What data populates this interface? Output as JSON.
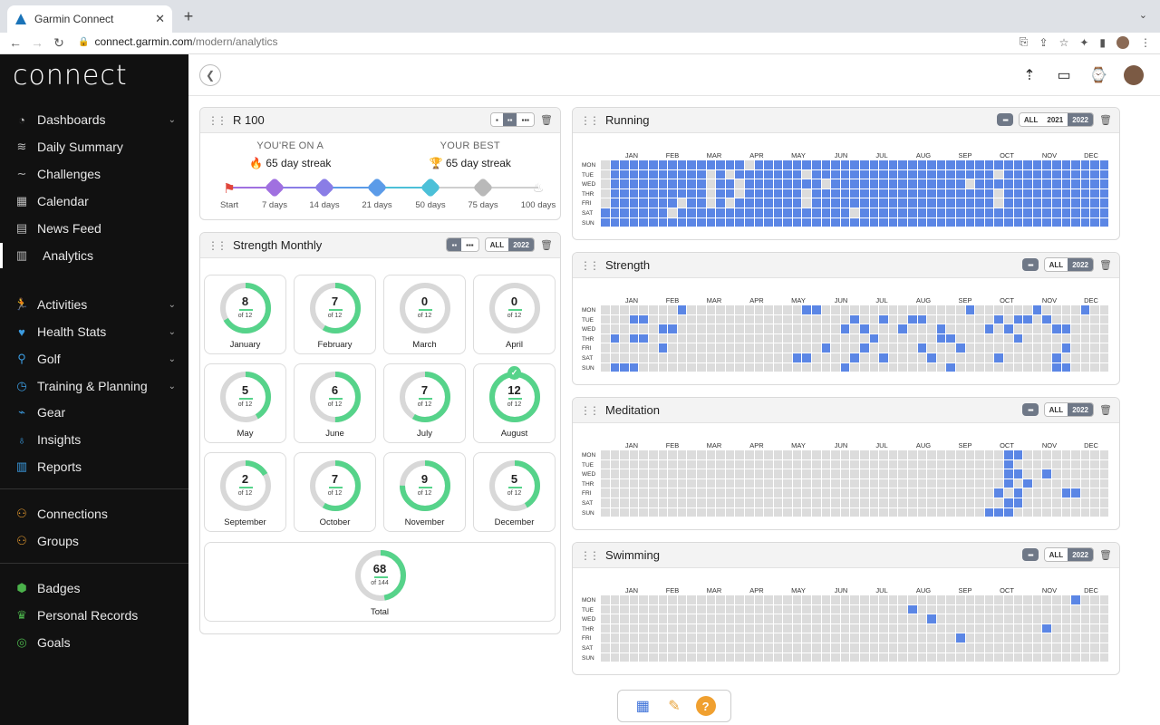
{
  "browser": {
    "tab_title": "Garmin Connect",
    "url_host": "connect.garmin.com",
    "url_path": "/modern/analytics"
  },
  "sidebar": {
    "logo": "connect",
    "items": [
      {
        "label": "Dashboards",
        "icon": "gauge-icon",
        "chevron": true
      },
      {
        "label": "Daily Summary",
        "icon": "layers-icon",
        "chevron": false
      },
      {
        "label": "Challenges",
        "icon": "wave-icon",
        "chevron": false
      },
      {
        "label": "Calendar",
        "icon": "calendar-icon",
        "chevron": false
      },
      {
        "label": "News Feed",
        "icon": "newsfeed-icon",
        "chevron": false
      },
      {
        "label": "Analytics",
        "icon": "bar-chart-icon",
        "chevron": false
      },
      {
        "label": "Activities",
        "icon": "runner-icon",
        "chevron": true
      },
      {
        "label": "Health Stats",
        "icon": "heart-icon",
        "chevron": true
      },
      {
        "label": "Golf",
        "icon": "golfer-icon",
        "chevron": true
      },
      {
        "label": "Training & Planning",
        "icon": "stopwatch-icon",
        "chevron": true
      },
      {
        "label": "Gear",
        "icon": "shoe-icon",
        "chevron": false
      },
      {
        "label": "Insights",
        "icon": "lightbulb-icon",
        "chevron": false
      },
      {
        "label": "Reports",
        "icon": "reports-icon",
        "chevron": false
      },
      {
        "label": "Connections",
        "icon": "people-icon",
        "chevron": false
      },
      {
        "label": "Groups",
        "icon": "group-icon",
        "chevron": false
      },
      {
        "label": "Badges",
        "icon": "badge-icon",
        "chevron": false
      },
      {
        "label": "Personal Records",
        "icon": "trophy-icon",
        "chevron": false
      },
      {
        "label": "Goals",
        "icon": "target-icon",
        "chevron": false
      }
    ]
  },
  "streak": {
    "title": "R 100",
    "current_label": "YOU'RE ON A",
    "current_value": "65 day streak",
    "best_label": "YOUR BEST",
    "best_value": "65 day streak",
    "milestones": [
      {
        "label": "Start",
        "color": "#e0463b",
        "achieved": true
      },
      {
        "label": "7 days",
        "color": "#a070e0",
        "achieved": true
      },
      {
        "label": "14 days",
        "color": "#8a7de6",
        "achieved": true
      },
      {
        "label": "21 days",
        "color": "#5b9be8",
        "achieved": true
      },
      {
        "label": "50 days",
        "color": "#4cc0d8",
        "achieved": true
      },
      {
        "label": "75 days",
        "color": "#b9b9b9",
        "achieved": false
      },
      {
        "label": "100 days",
        "color": "#c9c9c9",
        "achieved": false
      }
    ]
  },
  "strength_monthly": {
    "title": "Strength Monthly",
    "seg_all": "ALL",
    "seg_year": "2022",
    "months": [
      {
        "name": "January",
        "value": 8,
        "of": "of 12"
      },
      {
        "name": "February",
        "value": 7,
        "of": "of 12"
      },
      {
        "name": "March",
        "value": 0,
        "of": "of 12"
      },
      {
        "name": "April",
        "value": 0,
        "of": "of 12"
      },
      {
        "name": "May",
        "value": 5,
        "of": "of 12"
      },
      {
        "name": "June",
        "value": 6,
        "of": "of 12"
      },
      {
        "name": "July",
        "value": 7,
        "of": "of 12"
      },
      {
        "name": "August",
        "value": 12,
        "of": "of 12"
      },
      {
        "name": "September",
        "value": 2,
        "of": "of 12"
      },
      {
        "name": "October",
        "value": 7,
        "of": "of 12"
      },
      {
        "name": "November",
        "value": 9,
        "of": "of 12"
      },
      {
        "name": "December",
        "value": 5,
        "of": "of 12"
      }
    ],
    "total": {
      "name": "Total",
      "value": 68,
      "of": "of 144",
      "max": 144
    }
  },
  "heatmap_common": {
    "months": [
      "JAN",
      "FEB",
      "MAR",
      "APR",
      "MAY",
      "JUN",
      "JUL",
      "AUG",
      "SEP",
      "OCT",
      "NOV",
      "DEC"
    ],
    "days": [
      "MON",
      "TUE",
      "WED",
      "THR",
      "FRI",
      "SAT",
      "SUN"
    ]
  },
  "heatmaps": [
    {
      "key": "running",
      "title": "Running",
      "seg": [
        "ALL",
        "2021",
        "2022"
      ],
      "active_weeks": [
        [
          1,
          2,
          3,
          4,
          5,
          6,
          7,
          8,
          9,
          10,
          11,
          12,
          13,
          14,
          16,
          17,
          18,
          19,
          20,
          21,
          22,
          23,
          24,
          25,
          26,
          27,
          28,
          29,
          30,
          31,
          32,
          33,
          34,
          35,
          36,
          37,
          38,
          39,
          40,
          41,
          42,
          43,
          44,
          45,
          46,
          47,
          48,
          49,
          50,
          51,
          52
        ],
        [
          1,
          2,
          3,
          4,
          5,
          6,
          7,
          8,
          9,
          10,
          12,
          14,
          15,
          16,
          17,
          18,
          19,
          20,
          22,
          23,
          24,
          25,
          26,
          27,
          28,
          29,
          30,
          31,
          32,
          33,
          34,
          35,
          36,
          37,
          38,
          39,
          40,
          42,
          43,
          44,
          45,
          46,
          47,
          48,
          49,
          50,
          51,
          52
        ],
        [
          1,
          2,
          3,
          4,
          5,
          6,
          7,
          8,
          9,
          10,
          12,
          13,
          15,
          16,
          17,
          18,
          19,
          20,
          21,
          22,
          24,
          25,
          26,
          27,
          28,
          29,
          30,
          31,
          32,
          33,
          34,
          35,
          36,
          37,
          39,
          40,
          41,
          42,
          43,
          44,
          45,
          46,
          47,
          48,
          49,
          50,
          51,
          52
        ],
        [
          1,
          2,
          3,
          4,
          5,
          6,
          7,
          8,
          9,
          10,
          12,
          13,
          15,
          16,
          17,
          18,
          19,
          20,
          22,
          23,
          24,
          25,
          26,
          27,
          28,
          29,
          30,
          31,
          32,
          33,
          34,
          35,
          36,
          37,
          38,
          39,
          40,
          42,
          43,
          44,
          45,
          46,
          47,
          48,
          49,
          50,
          51,
          52
        ],
        [
          1,
          2,
          3,
          4,
          5,
          6,
          7,
          9,
          10,
          12,
          14,
          15,
          16,
          17,
          18,
          19,
          20,
          22,
          23,
          24,
          25,
          26,
          27,
          28,
          29,
          30,
          31,
          32,
          33,
          34,
          35,
          36,
          37,
          38,
          39,
          40,
          42,
          43,
          44,
          45,
          46,
          47,
          48,
          49,
          50,
          51,
          52
        ],
        [
          0,
          1,
          2,
          3,
          4,
          5,
          6,
          8,
          9,
          10,
          11,
          12,
          13,
          14,
          15,
          16,
          17,
          18,
          19,
          20,
          21,
          22,
          23,
          24,
          25,
          27,
          28,
          29,
          30,
          31,
          32,
          33,
          34,
          35,
          36,
          37,
          38,
          39,
          40,
          41,
          42,
          43,
          44,
          45,
          46,
          47,
          48,
          49,
          50,
          51,
          52
        ],
        [
          0,
          1,
          2,
          3,
          4,
          5,
          6,
          7,
          8,
          9,
          10,
          11,
          12,
          13,
          14,
          15,
          16,
          17,
          18,
          19,
          20,
          21,
          22,
          23,
          24,
          25,
          26,
          27,
          28,
          29,
          30,
          31,
          32,
          33,
          34,
          35,
          36,
          37,
          38,
          39,
          40,
          41,
          42,
          43,
          44,
          45,
          46,
          47,
          48,
          49,
          50,
          51,
          52
        ]
      ]
    },
    {
      "key": "strength",
      "title": "Strength",
      "seg": [
        "ALL",
        "2022"
      ],
      "active_weeks": [
        [
          8,
          21,
          22,
          38,
          45,
          50
        ],
        [
          3,
          4,
          26,
          29,
          32,
          33,
          41,
          43,
          44,
          46
        ],
        [
          6,
          7,
          25,
          27,
          31,
          35,
          40,
          42,
          47,
          48
        ],
        [
          1,
          3,
          4,
          28,
          35,
          36,
          43
        ],
        [
          6,
          23,
          27,
          33,
          37,
          48
        ],
        [
          20,
          21,
          26,
          29,
          34,
          41,
          47
        ],
        [
          1,
          2,
          3,
          25,
          36,
          47,
          48
        ]
      ]
    },
    {
      "key": "meditation",
      "title": "Meditation",
      "seg": [
        "ALL",
        "2022"
      ],
      "active_weeks": [
        [
          42,
          43
        ],
        [
          42
        ],
        [
          42,
          43,
          46
        ],
        [
          42,
          44
        ],
        [
          41,
          43,
          48,
          49
        ],
        [
          42,
          43
        ],
        [
          40,
          41,
          42
        ]
      ]
    },
    {
      "key": "swimming",
      "title": "Swimming",
      "seg": [
        "ALL",
        "2022"
      ],
      "active_weeks": [
        [
          49
        ],
        [
          32
        ],
        [
          34
        ],
        [
          46
        ],
        [
          37
        ],
        [],
        []
      ]
    }
  ]
}
